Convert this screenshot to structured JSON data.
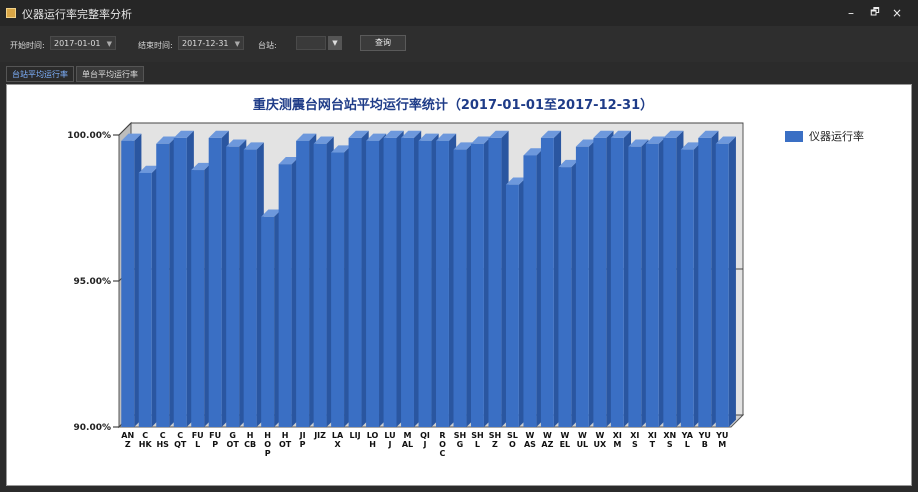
{
  "window": {
    "title": "仪器运行率完整率分析",
    "controls": {
      "minimize": "–",
      "restore": "🗗",
      "close": "×"
    }
  },
  "toolbar": {
    "start_label": "开始时间:",
    "start_value": "2017-01-01",
    "end_label": "结束时间:",
    "end_value": "2017-12-31",
    "station_label": "台站:",
    "station_value": "",
    "query_label": "查询"
  },
  "tabs": [
    {
      "label": "台站平均运行率",
      "active": true
    },
    {
      "label": "单台平均运行率",
      "active": false
    }
  ],
  "chart_data": {
    "type": "bar",
    "title": "重庆测震台网台站平均运行率统计（2017-01-01至2017-12-31）",
    "legend": "仪器运行率",
    "legend_position": "top-right",
    "y_ticks": [
      "90.00%",
      "95.00%",
      "100.00%"
    ],
    "ylim": [
      90,
      100
    ],
    "bar_color": "#3a6fc4",
    "categories": [
      "ANZ",
      "CHK",
      "CHS",
      "CQT",
      "FUL",
      "FUP",
      "GOT",
      "HCB",
      "HOP",
      "HOT",
      "JIP",
      "JIZ",
      "LAX",
      "LIJ",
      "LOH",
      "LUJ",
      "MAL",
      "QIJ",
      "ROC",
      "SHG",
      "SHL",
      "SHZ",
      "SLO",
      "WAS",
      "WAZ",
      "WEL",
      "WUL",
      "WUX",
      "XIM",
      "XIS",
      "XIT",
      "XNS",
      "YAL",
      "YUB",
      "YUM"
    ],
    "category_labels": [
      [
        "AN",
        "Z"
      ],
      [
        "C",
        "HK"
      ],
      [
        "C",
        "HS"
      ],
      [
        "C",
        "QT"
      ],
      [
        "FU",
        "L"
      ],
      [
        "FU",
        "P"
      ],
      [
        "G",
        "OT"
      ],
      [
        "H",
        "CB"
      ],
      [
        "H",
        "O",
        "P"
      ],
      [
        "H",
        "OT"
      ],
      [
        "JI",
        "P"
      ],
      [
        "JIZ"
      ],
      [
        "LA",
        "X"
      ],
      [
        "LIJ"
      ],
      [
        "LO",
        "H"
      ],
      [
        "LU",
        "J"
      ],
      [
        "M",
        "AL"
      ],
      [
        "QI",
        "J"
      ],
      [
        "R",
        "O",
        "C"
      ],
      [
        "SH",
        "G"
      ],
      [
        "SH",
        "L"
      ],
      [
        "SH",
        "Z"
      ],
      [
        "SL",
        "O"
      ],
      [
        "W",
        "AS"
      ],
      [
        "W",
        "AZ"
      ],
      [
        "W",
        "EL"
      ],
      [
        "W",
        "UL"
      ],
      [
        "W",
        "UX"
      ],
      [
        "XI",
        "M"
      ],
      [
        "XI",
        "S"
      ],
      [
        "XI",
        "T"
      ],
      [
        "XN",
        "S"
      ],
      [
        "YA",
        "L"
      ],
      [
        "YU",
        "B"
      ],
      [
        "YU",
        "M"
      ]
    ],
    "values": [
      99.8,
      98.7,
      99.7,
      99.9,
      98.8,
      99.9,
      99.6,
      99.5,
      97.2,
      99.0,
      99.8,
      99.7,
      99.4,
      99.9,
      99.8,
      99.9,
      99.9,
      99.8,
      99.8,
      99.5,
      99.7,
      99.9,
      98.3,
      99.3,
      99.9,
      98.9,
      99.6,
      99.9,
      99.9,
      99.6,
      99.7,
      99.9,
      99.5,
      99.9,
      99.7
    ]
  }
}
